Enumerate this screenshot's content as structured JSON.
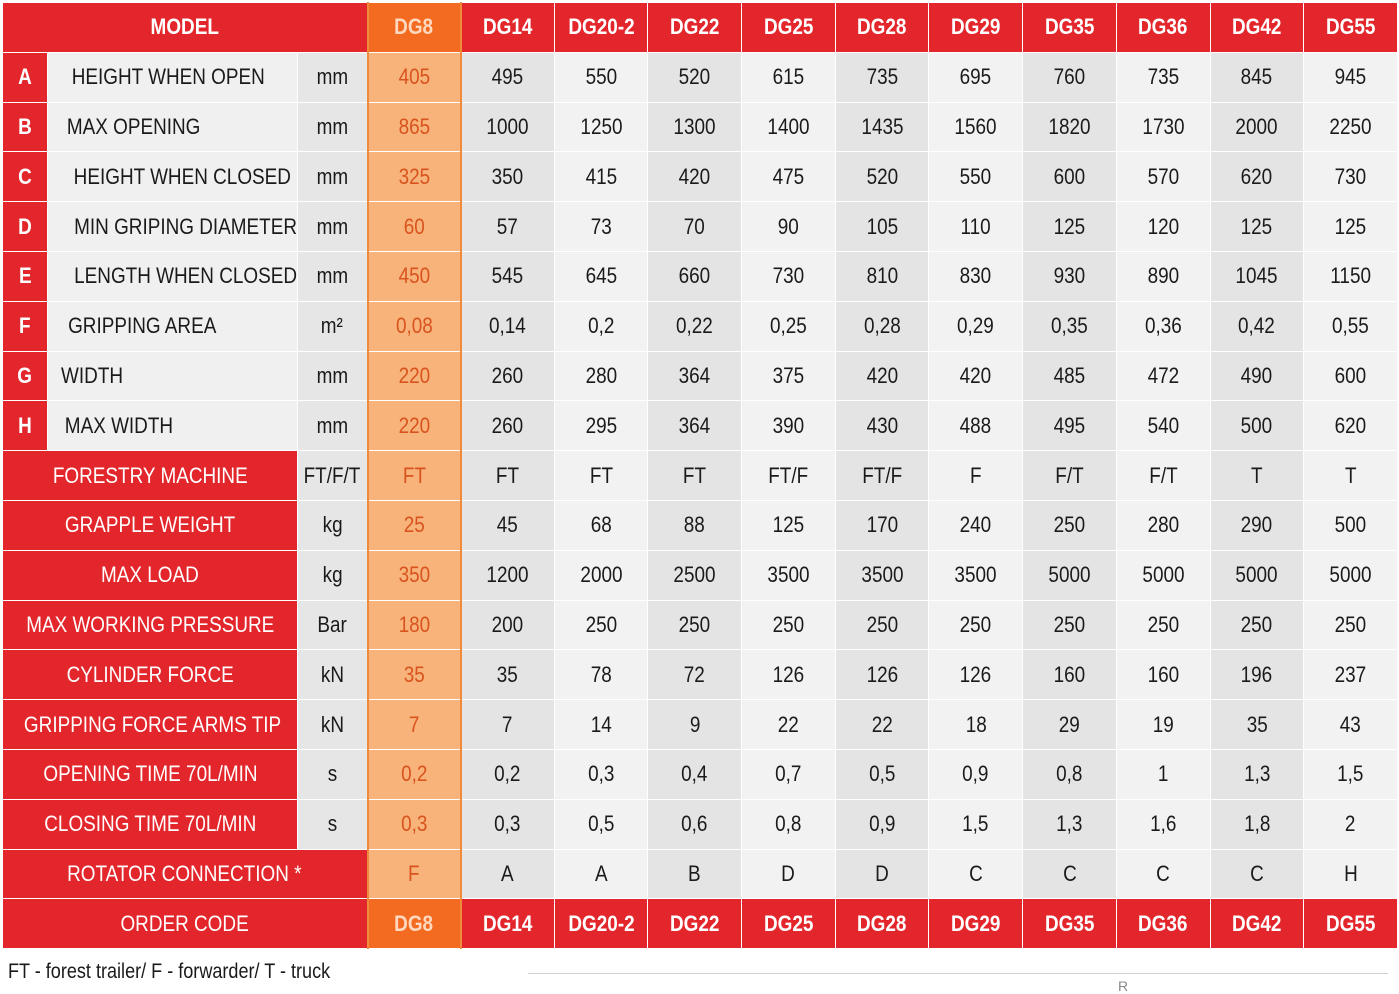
{
  "header": {
    "model_label": "MODEL",
    "order_code_label": "ORDER CODE"
  },
  "models": [
    "DG8",
    "DG14",
    "DG20-2",
    "DG22",
    "DG25",
    "DG28",
    "DG29",
    "DG35",
    "DG36",
    "DG42",
    "DG55"
  ],
  "highlighted_model": "DG8",
  "param_rows": [
    {
      "letter": "A",
      "label": "HEIGHT WHEN OPEN",
      "unit": "mm",
      "values": [
        "405",
        "495",
        "550",
        "520",
        "615",
        "735",
        "695",
        "760",
        "735",
        "845",
        "945"
      ]
    },
    {
      "letter": "B",
      "label": "MAX OPENING",
      "unit": "mm",
      "values": [
        "865",
        "1000",
        "1250",
        "1300",
        "1400",
        "1435",
        "1560",
        "1820",
        "1730",
        "2000",
        "2250"
      ]
    },
    {
      "letter": "C",
      "label": "HEIGHT WHEN CLOSED",
      "unit": "mm",
      "values": [
        "325",
        "350",
        "415",
        "420",
        "475",
        "520",
        "550",
        "600",
        "570",
        "620",
        "730"
      ]
    },
    {
      "letter": "D",
      "label": "MIN GRIPING DIAMETER",
      "unit": "mm",
      "values": [
        "60",
        "57",
        "73",
        "70",
        "90",
        "105",
        "110",
        "125",
        "120",
        "125",
        "125"
      ]
    },
    {
      "letter": "E",
      "label": "LENGTH WHEN CLOSED",
      "unit": "mm",
      "values": [
        "450",
        "545",
        "645",
        "660",
        "730",
        "810",
        "830",
        "930",
        "890",
        "1045",
        "1150"
      ]
    },
    {
      "letter": "F",
      "label": "GRIPPING AREA",
      "unit": "m²",
      "values": [
        "0,08",
        "0,14",
        "0,2",
        "0,22",
        "0,25",
        "0,28",
        "0,29",
        "0,35",
        "0,36",
        "0,42",
        "0,55"
      ]
    },
    {
      "letter": "G",
      "label": "WIDTH",
      "unit": "mm",
      "values": [
        "220",
        "260",
        "280",
        "364",
        "375",
        "420",
        "420",
        "485",
        "472",
        "490",
        "600"
      ]
    },
    {
      "letter": "H",
      "label": "MAX WIDTH",
      "unit": "mm",
      "values": [
        "220",
        "260",
        "295",
        "364",
        "390",
        "430",
        "488",
        "495",
        "540",
        "500",
        "620"
      ]
    }
  ],
  "spec_rows": [
    {
      "label": "FORESTRY MACHINE",
      "unit": "FT/F/T",
      "values": [
        "FT",
        "FT",
        "FT",
        "FT",
        "FT/F",
        "FT/F",
        "F",
        "F/T",
        "F/T",
        "T",
        "T"
      ]
    },
    {
      "label": "GRAPPLE WEIGHT",
      "unit": "kg",
      "values": [
        "25",
        "45",
        "68",
        "88",
        "125",
        "170",
        "240",
        "250",
        "280",
        "290",
        "500"
      ]
    },
    {
      "label": "MAX LOAD",
      "unit": "kg",
      "values": [
        "350",
        "1200",
        "2000",
        "2500",
        "3500",
        "3500",
        "3500",
        "5000",
        "5000",
        "5000",
        "5000"
      ]
    },
    {
      "label": "MAX WORKING PRESSURE",
      "unit": "Bar",
      "values": [
        "180",
        "200",
        "250",
        "250",
        "250",
        "250",
        "250",
        "250",
        "250",
        "250",
        "250"
      ]
    },
    {
      "label": "CYLINDER FORCE",
      "unit": "kN",
      "values": [
        "35",
        "35",
        "78",
        "72",
        "126",
        "126",
        "126",
        "160",
        "160",
        "196",
        "237"
      ]
    },
    {
      "label": "GRIPPING FORCE ARMS TIP",
      "unit": "kN",
      "values": [
        "7",
        "7",
        "14",
        "9",
        "22",
        "22",
        "18",
        "29",
        "19",
        "35",
        "43"
      ]
    },
    {
      "label": "OPENING TIME 70L/MIN",
      "unit": "s",
      "values": [
        "0,2",
        "0,2",
        "0,3",
        "0,4",
        "0,7",
        "0,5",
        "0,9",
        "0,8",
        "1",
        "1,3",
        "1,5"
      ]
    },
    {
      "label": "CLOSING TIME 70L/MIN",
      "unit": "s",
      "values": [
        "0,3",
        "0,3",
        "0,5",
        "0,6",
        "0,8",
        "0,9",
        "1,5",
        "1,3",
        "1,6",
        "1,8",
        "2"
      ]
    }
  ],
  "rotator_row": {
    "label": "ROTATOR CONNECTION *",
    "values": [
      "F",
      "A",
      "A",
      "B",
      "D",
      "D",
      "C",
      "C",
      "C",
      "C",
      "H"
    ]
  },
  "legend": "FT - forest trailer/ F - forwarder/ T - truck",
  "colors": {
    "red": "#e3262b",
    "highlight_header": "#f36b21",
    "highlight_cell": "#f7b37a",
    "label_bg": "#f0f0f0"
  }
}
